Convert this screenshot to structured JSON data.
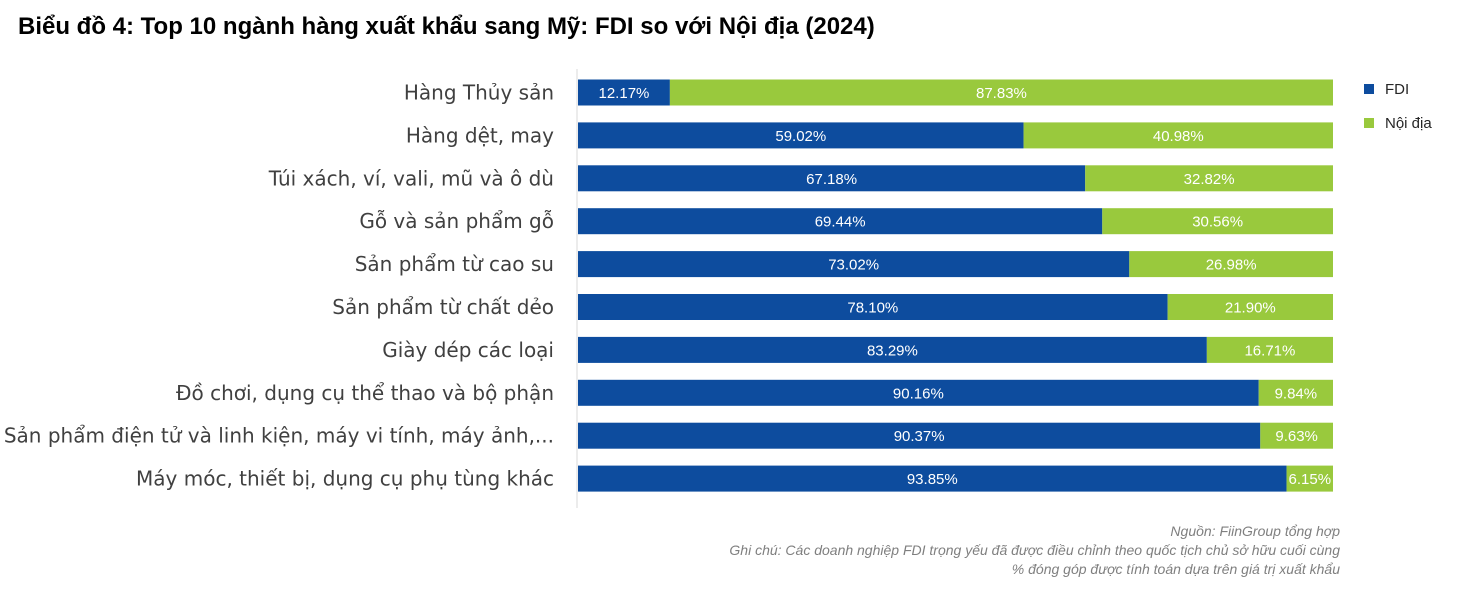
{
  "title": "Biểu đồ 4: Top 10 ngành hàng xuất khẩu sang Mỹ: FDI so với Nội địa (2024)",
  "colors": {
    "fdi": "#0D4C9E",
    "domestic": "#99C93D"
  },
  "chart_data": {
    "type": "bar",
    "orientation": "horizontal",
    "stacked": "100%",
    "categories": [
      "Hàng Thủy sản",
      "Hàng dệt, may",
      "Túi xách, ví, vali, mũ và ô dù",
      "Gỗ và sản phẩm gỗ",
      "Sản phẩm từ cao su",
      "Sản phẩm từ chất dẻo",
      "Giày dép các loại",
      "Đồ chơi, dụng cụ thể thao và bộ phận",
      "Sản phẩm điện tử và linh kiện, máy vi tính, máy ảnh,...",
      "Máy móc, thiết bị, dụng cụ phụ tùng khác"
    ],
    "series": [
      {
        "name": "FDI",
        "values": [
          12.17,
          59.02,
          67.18,
          69.44,
          73.02,
          78.1,
          83.29,
          90.16,
          90.37,
          93.85
        ],
        "labels": [
          "12.17%",
          "59.02%",
          "67.18%",
          "69.44%",
          "73.02%",
          "78.10%",
          "83.29%",
          "90.16%",
          "90.37%",
          "93.85%"
        ]
      },
      {
        "name": "Nội địa",
        "values": [
          87.83,
          40.98,
          32.82,
          30.56,
          26.98,
          21.9,
          16.71,
          9.84,
          9.63,
          6.15
        ],
        "labels": [
          "87.83%",
          "40.98%",
          "32.82%",
          "30.56%",
          "26.98%",
          "21.90%",
          "16.71%",
          "9.84%",
          "9.63%",
          "6.15%"
        ]
      }
    ],
    "xlim": [
      0,
      100
    ],
    "grid": false,
    "legend": "top-right"
  },
  "notes": {
    "source": "Nguồn: FiinGroup tổng hợp",
    "note": "Ghi chú: Các doanh nghiệp FDI trọng yếu đã được điều chỉnh theo quốc tịch chủ sở hữu cuối cùng",
    "method": "% đóng góp được tính toán dựa trên giá trị xuất khẩu"
  }
}
